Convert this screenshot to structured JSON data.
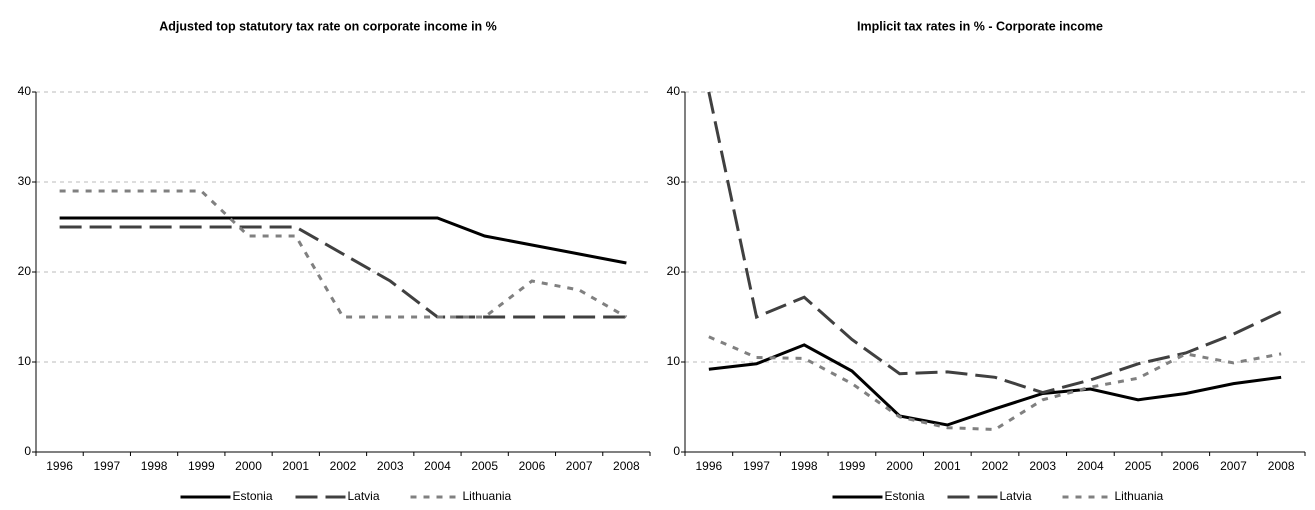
{
  "chart_data": [
    {
      "type": "line",
      "title": "Adjusted top statutory tax rate on corporate income in %",
      "categories": [
        "1996",
        "1997",
        "1998",
        "1999",
        "2000",
        "2001",
        "2002",
        "2003",
        "2004",
        "2005",
        "2006",
        "2007",
        "2008"
      ],
      "ylim": [
        0,
        40
      ],
      "yticks": [
        0,
        10,
        20,
        30,
        40
      ],
      "grid": true,
      "series": [
        {
          "name": "Estonia",
          "color": "#000000",
          "values": [
            26,
            26,
            26,
            26,
            26,
            26,
            26,
            26,
            26,
            24,
            23,
            22,
            21
          ]
        },
        {
          "name": "Latvia",
          "color": "#404040",
          "values": [
            25,
            25,
            25,
            25,
            25,
            25,
            22,
            19,
            15,
            15,
            15,
            15,
            15
          ]
        },
        {
          "name": "Lithuania",
          "color": "#808080",
          "values": [
            29,
            29,
            29,
            29,
            24,
            24,
            15,
            15,
            15,
            15,
            19,
            18,
            15
          ]
        }
      ]
    },
    {
      "type": "line",
      "title": "Implicit tax rates in % - Corporate income",
      "categories": [
        "1996",
        "1997",
        "1998",
        "1999",
        "2000",
        "2001",
        "2002",
        "2003",
        "2004",
        "2005",
        "2006",
        "2007",
        "2008"
      ],
      "ylim": [
        0,
        40
      ],
      "yticks": [
        0,
        10,
        20,
        30,
        40
      ],
      "grid": true,
      "series": [
        {
          "name": "Estonia",
          "color": "#000000",
          "values": [
            9.2,
            9.8,
            11.9,
            9.0,
            4.0,
            3.0,
            4.8,
            6.5,
            7.0,
            5.8,
            6.5,
            7.6,
            8.3
          ]
        },
        {
          "name": "Latvia",
          "color": "#404040",
          "values": [
            40,
            15,
            17.2,
            12.5,
            8.7,
            8.9,
            8.3,
            6.6,
            8.0,
            9.8,
            11.0,
            13.1,
            15.6
          ]
        },
        {
          "name": "Lithuania",
          "color": "#808080",
          "values": [
            12.8,
            10.5,
            10.4,
            7.6,
            3.9,
            2.7,
            2.5,
            5.8,
            7.2,
            8.2,
            10.9,
            9.9,
            10.9
          ]
        }
      ]
    }
  ]
}
